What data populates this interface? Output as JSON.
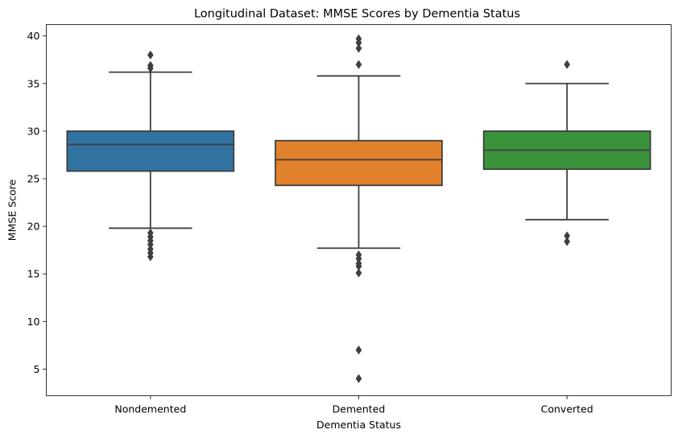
{
  "chart_data": {
    "type": "box",
    "title": "Longitudinal Dataset: MMSE Scores by Dementia Status",
    "xlabel": "Dementia Status",
    "ylabel": "MMSE Score",
    "ylim": [
      2.2,
      41.2
    ],
    "yticks": [
      5,
      10,
      15,
      20,
      25,
      30,
      35,
      40
    ],
    "grid": false,
    "categories": [
      "Nondemented",
      "Demented",
      "Converted"
    ],
    "colors": [
      "#3274a1",
      "#e1812c",
      "#3a923a"
    ],
    "edge_color": "#3f3f3f",
    "boxes": [
      {
        "category": "Nondemented",
        "whisker_low": 19.8,
        "q1": 25.8,
        "median": 28.6,
        "q3": 30.0,
        "whisker_high": 36.2,
        "outliers": [
          38.0,
          36.9,
          36.6,
          19.3,
          18.9,
          18.5,
          18.1,
          17.6,
          17.2,
          16.8
        ]
      },
      {
        "category": "Demented",
        "whisker_low": 17.7,
        "q1": 24.3,
        "median": 27.0,
        "q3": 29.0,
        "whisker_high": 35.8,
        "outliers": [
          39.7,
          39.3,
          38.7,
          37.0,
          17.0,
          16.6,
          16.1,
          15.8,
          15.1,
          7.0,
          4.0
        ]
      },
      {
        "category": "Converted",
        "whisker_low": 20.7,
        "q1": 26.0,
        "median": 28.0,
        "q3": 30.0,
        "whisker_high": 35.0,
        "outliers": [
          37.0,
          19.0,
          18.4
        ]
      }
    ]
  }
}
